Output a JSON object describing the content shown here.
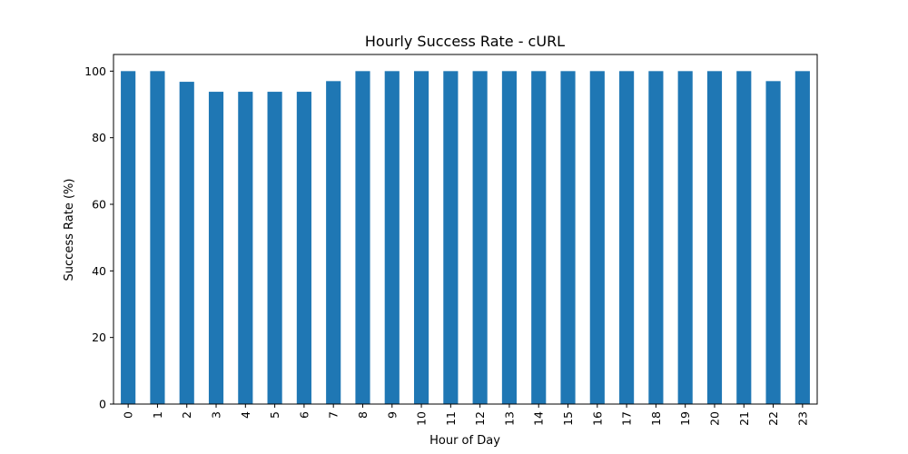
{
  "chart_data": {
    "type": "bar",
    "title": "Hourly Success Rate - cURL",
    "xlabel": "Hour of Day",
    "ylabel": "Success Rate (%)",
    "categories": [
      "0",
      "1",
      "2",
      "3",
      "4",
      "5",
      "6",
      "7",
      "8",
      "9",
      "10",
      "11",
      "12",
      "13",
      "14",
      "15",
      "16",
      "17",
      "18",
      "19",
      "20",
      "21",
      "22",
      "23"
    ],
    "values": [
      100,
      100,
      96.8,
      93.8,
      93.8,
      93.8,
      93.8,
      97,
      100,
      100,
      100,
      100,
      100,
      100,
      100,
      100,
      100,
      100,
      100,
      100,
      100,
      100,
      97,
      100
    ],
    "yticks": [
      0,
      20,
      40,
      60,
      80,
      100
    ],
    "ylim": [
      0,
      105
    ],
    "bar_color": "#1f77b4",
    "grid": false,
    "legend": "none"
  }
}
